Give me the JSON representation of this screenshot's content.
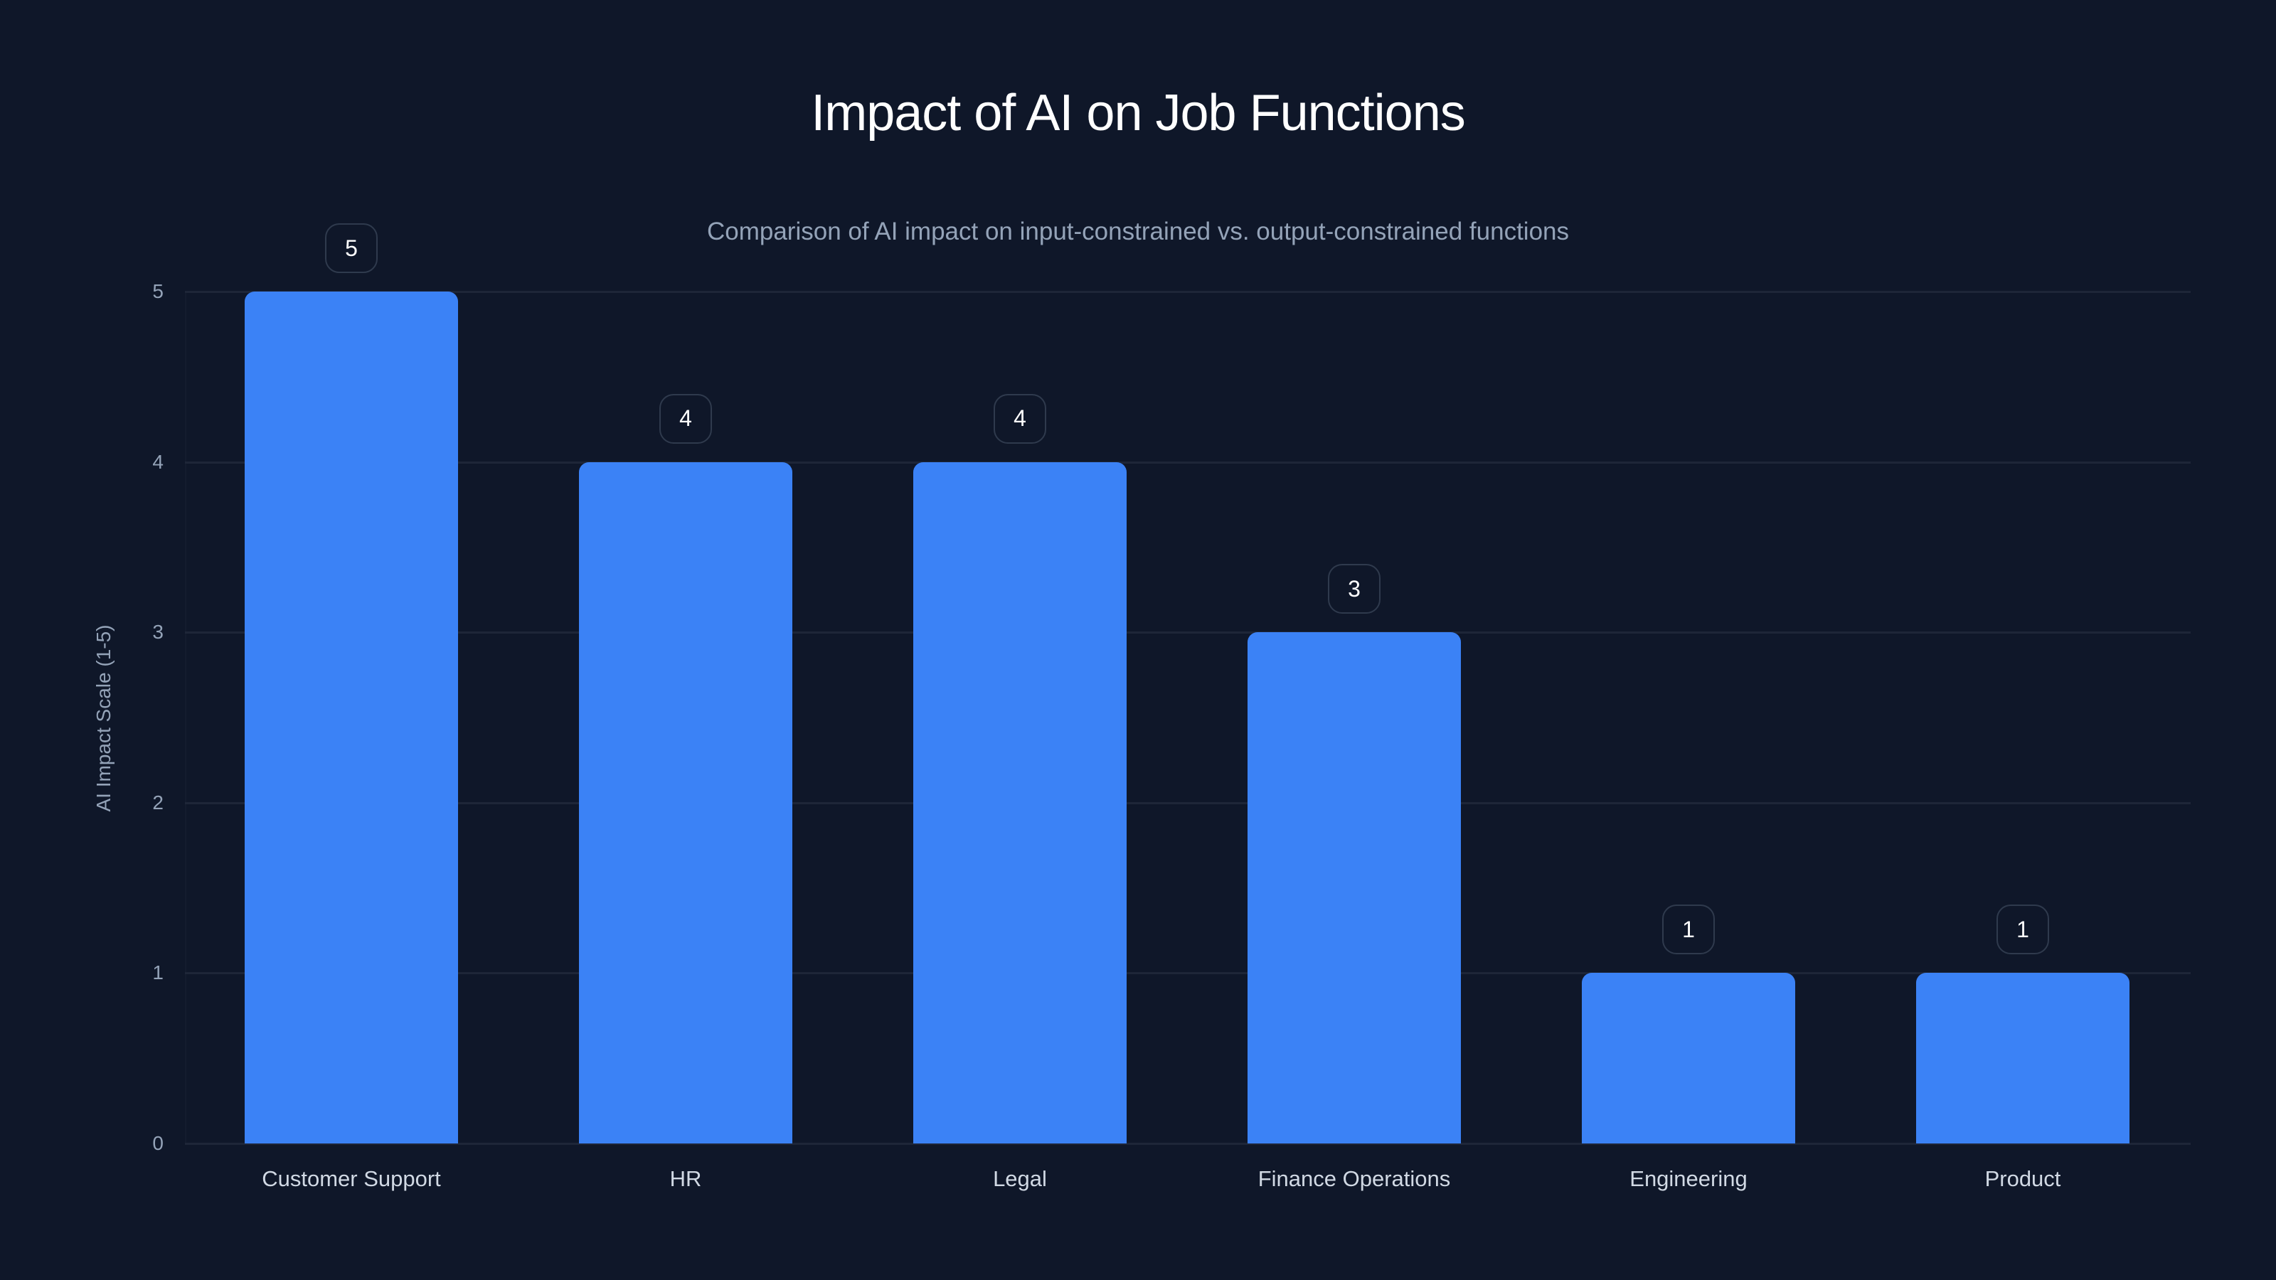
{
  "chart_data": {
    "type": "bar",
    "title": "Impact of AI on Job Functions",
    "subtitle": "Comparison of AI impact on input-constrained vs. output-constrained functions",
    "xlabel": "",
    "ylabel": "AI Impact Scale (1-5)",
    "categories": [
      "Customer Support",
      "HR",
      "Legal",
      "Finance Operations",
      "Engineering",
      "Product"
    ],
    "values": [
      5,
      4,
      4,
      3,
      1,
      1
    ],
    "ylim": [
      0,
      5
    ],
    "yticks": [
      "0",
      "1",
      "2",
      "3",
      "4",
      "5"
    ],
    "grid": true,
    "legend": "none",
    "data_labels": true,
    "bar_color": "#3b82f6"
  },
  "labels": {
    "values": [
      "5",
      "4",
      "4",
      "3",
      "1",
      "1"
    ]
  },
  "colors": {
    "background": "#0f1729",
    "bar": "#3b82f6",
    "title": "#ffffff",
    "muted_text": "#94a3b8",
    "grid": "#1e2638"
  }
}
